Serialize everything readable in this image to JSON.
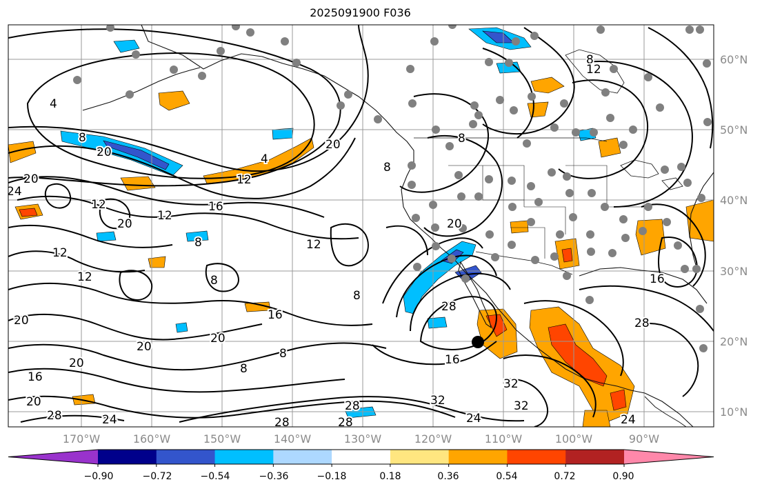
{
  "title": "2025091900 F036",
  "lat_labels": [
    "60°N",
    "50°N",
    "40°N",
    "30°N",
    "20°N",
    "10°N"
  ],
  "lon_labels": [
    "170°W",
    "160°W",
    "150°W",
    "140°W",
    "130°W",
    "120°W",
    "110°W",
    "100°W",
    "90°W"
  ],
  "colorbar": {
    "colors": [
      "#9933cc",
      "#00008b",
      "#3355cc",
      "#00bfff",
      "#add8ff",
      "#ffffff",
      "#ffe680",
      "#ffa500",
      "#ff4500",
      "#b22222",
      "#ff88aa"
    ],
    "tick_labels": [
      "−0.90",
      "−0.72",
      "−0.54",
      "−0.36",
      "−0.18",
      "0.18",
      "0.36",
      "0.54",
      "0.72",
      "0.90"
    ]
  },
  "contour_labels": [
    "4",
    "4",
    "8",
    "8",
    "8",
    "8",
    "8",
    "8",
    "8",
    "8",
    "8",
    "12",
    "12",
    "12",
    "12",
    "12",
    "12",
    "12",
    "16",
    "16",
    "16",
    "16",
    "16",
    "20",
    "20",
    "20",
    "20",
    "20",
    "20",
    "20",
    "20",
    "20",
    "20",
    "24",
    "24",
    "24",
    "24",
    "28",
    "28",
    "28",
    "28",
    "28",
    "28",
    "32",
    "32",
    "32"
  ],
  "colors": {
    "contour": "#000000",
    "coast": "#111111",
    "grid": "#999999",
    "station": "#808080",
    "marker": "#000000",
    "axis_label": "#8a8a8a"
  }
}
